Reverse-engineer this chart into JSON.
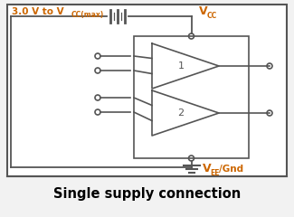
{
  "bg_color": "#f2f2f2",
  "line_color": "#555555",
  "orange_color": "#cc6600",
  "title": "Single supply connection",
  "title_fontsize": 10.5,
  "amp1_label": "1",
  "amp2_label": "2",
  "fig_w": 3.25,
  "fig_h": 2.4,
  "dpi": 100
}
